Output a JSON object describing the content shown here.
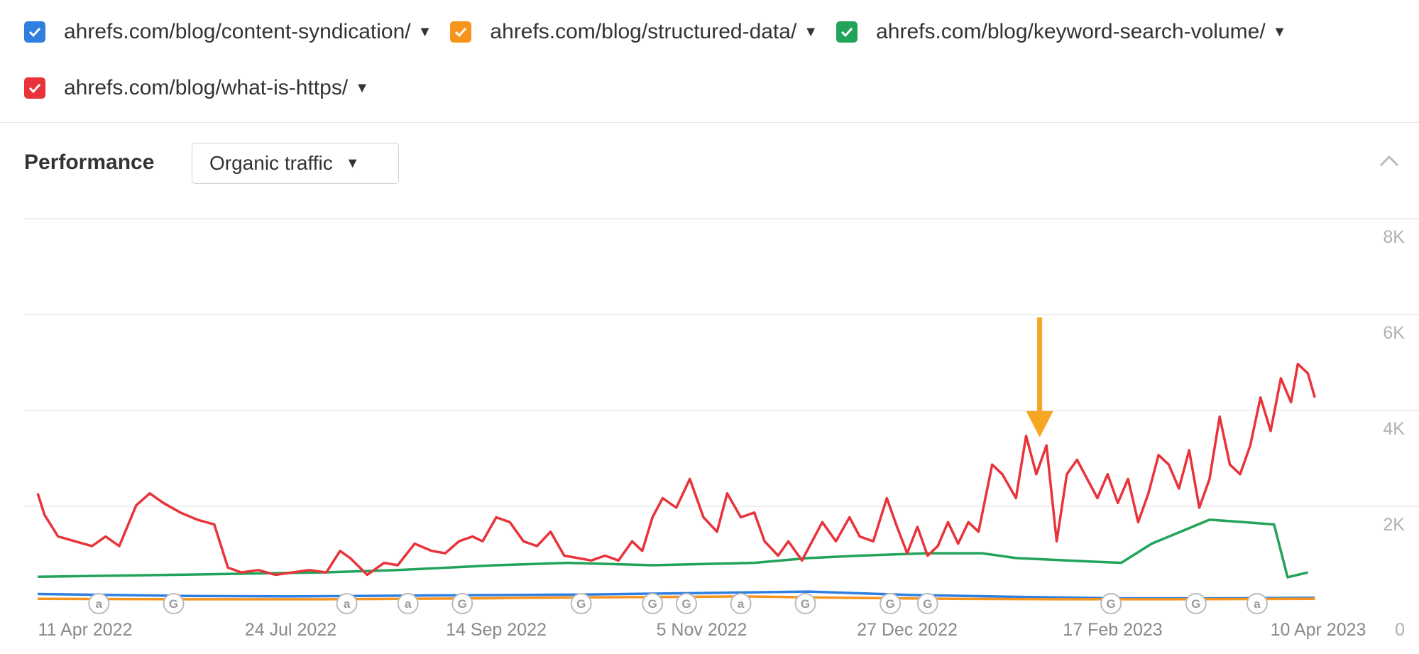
{
  "legend": [
    {
      "label": "ahrefs.com/blog/content-syndication/",
      "color": "#2f7fe0"
    },
    {
      "label": "ahrefs.com/blog/structured-data/",
      "color": "#f7941d"
    },
    {
      "label": "ahrefs.com/blog/keyword-search-volume/",
      "color": "#22a35a"
    },
    {
      "label": "ahrefs.com/blog/what-is-https/",
      "color": "#e8333a"
    }
  ],
  "icons": {
    "checkbox": "checkmark-icon",
    "caret": "caret-down-icon",
    "collapse": "chevron-up-icon",
    "annotation_arrow": "arrow-down-icon"
  },
  "performance": {
    "title": "Performance",
    "metric": "Organic traffic"
  },
  "chart_data": {
    "type": "line",
    "x_range": [
      "2022-04-03",
      "2023-04-19"
    ],
    "y_range": [
      0,
      8000
    ],
    "y_ticks": [
      "8K",
      "6K",
      "4K",
      "2K",
      "0"
    ],
    "x_ticks": [
      "11 Apr 2022",
      "24 Jul 2022",
      "14 Sep 2022",
      "5 Nov 2022",
      "27 Dec 2022",
      "17 Feb 2023",
      "10 Apr 2023"
    ],
    "grid": true,
    "annotation": {
      "type": "arrow",
      "date": "2023-01-27",
      "color": "#f5a623"
    },
    "event_markers": [
      {
        "label": "a",
        "date": "2022-04-25"
      },
      {
        "label": "G",
        "date": "2022-05-17"
      },
      {
        "label": "a",
        "date": "2022-07-07"
      },
      {
        "label": "a",
        "date": "2022-07-25"
      },
      {
        "label": "G",
        "date": "2022-08-10"
      },
      {
        "label": "G",
        "date": "2022-09-14"
      },
      {
        "label": "G",
        "date": "2022-10-05"
      },
      {
        "label": "G",
        "date": "2022-10-15"
      },
      {
        "label": "a",
        "date": "2022-10-31"
      },
      {
        "label": "G",
        "date": "2022-11-19"
      },
      {
        "label": "G",
        "date": "2022-12-14"
      },
      {
        "label": "G",
        "date": "2022-12-25"
      },
      {
        "label": "G",
        "date": "2023-02-17"
      },
      {
        "label": "G",
        "date": "2023-03-14"
      },
      {
        "label": "a",
        "date": "2023-04-01"
      }
    ],
    "series": [
      {
        "name": "ahrefs.com/blog/what-is-https/",
        "color": "#e8333a",
        "points": [
          [
            "2022-04-07",
            2300
          ],
          [
            "2022-04-09",
            1850
          ],
          [
            "2022-04-13",
            1400
          ],
          [
            "2022-04-18",
            1300
          ],
          [
            "2022-04-23",
            1200
          ],
          [
            "2022-04-27",
            1400
          ],
          [
            "2022-05-01",
            1200
          ],
          [
            "2022-05-06",
            2050
          ],
          [
            "2022-05-10",
            2300
          ],
          [
            "2022-05-14",
            2100
          ],
          [
            "2022-05-19",
            1900
          ],
          [
            "2022-05-24",
            1750
          ],
          [
            "2022-05-29",
            1650
          ],
          [
            "2022-06-02",
            750
          ],
          [
            "2022-06-06",
            650
          ],
          [
            "2022-06-11",
            700
          ],
          [
            "2022-06-16",
            600
          ],
          [
            "2022-06-21",
            650
          ],
          [
            "2022-06-26",
            700
          ],
          [
            "2022-07-01",
            650
          ],
          [
            "2022-07-05",
            1100
          ],
          [
            "2022-07-08",
            950
          ],
          [
            "2022-07-13",
            600
          ],
          [
            "2022-07-18",
            850
          ],
          [
            "2022-07-22",
            800
          ],
          [
            "2022-07-27",
            1250
          ],
          [
            "2022-08-01",
            1100
          ],
          [
            "2022-08-05",
            1050
          ],
          [
            "2022-08-09",
            1300
          ],
          [
            "2022-08-13",
            1400
          ],
          [
            "2022-08-16",
            1300
          ],
          [
            "2022-08-20",
            1800
          ],
          [
            "2022-08-24",
            1700
          ],
          [
            "2022-08-28",
            1300
          ],
          [
            "2022-09-01",
            1200
          ],
          [
            "2022-09-05",
            1500
          ],
          [
            "2022-09-09",
            1000
          ],
          [
            "2022-09-13",
            950
          ],
          [
            "2022-09-17",
            900
          ],
          [
            "2022-09-21",
            1000
          ],
          [
            "2022-09-25",
            900
          ],
          [
            "2022-09-29",
            1300
          ],
          [
            "2022-10-02",
            1100
          ],
          [
            "2022-10-05",
            1800
          ],
          [
            "2022-10-08",
            2200
          ],
          [
            "2022-10-12",
            2000
          ],
          [
            "2022-10-16",
            2600
          ],
          [
            "2022-10-20",
            1800
          ],
          [
            "2022-10-24",
            1500
          ],
          [
            "2022-10-27",
            2300
          ],
          [
            "2022-10-31",
            1800
          ],
          [
            "2022-11-04",
            1900
          ],
          [
            "2022-11-07",
            1300
          ],
          [
            "2022-11-11",
            1000
          ],
          [
            "2022-11-14",
            1300
          ],
          [
            "2022-11-18",
            900
          ],
          [
            "2022-11-21",
            1300
          ],
          [
            "2022-11-24",
            1700
          ],
          [
            "2022-11-28",
            1300
          ],
          [
            "2022-12-02",
            1800
          ],
          [
            "2022-12-05",
            1400
          ],
          [
            "2022-12-09",
            1300
          ],
          [
            "2022-12-13",
            2200
          ],
          [
            "2022-12-16",
            1600
          ],
          [
            "2022-12-19",
            1050
          ],
          [
            "2022-12-22",
            1600
          ],
          [
            "2022-12-25",
            1000
          ],
          [
            "2022-12-28",
            1200
          ],
          [
            "2022-12-31",
            1700
          ],
          [
            "2023-01-03",
            1250
          ],
          [
            "2023-01-06",
            1700
          ],
          [
            "2023-01-09",
            1500
          ],
          [
            "2023-01-13",
            2900
          ],
          [
            "2023-01-16",
            2700
          ],
          [
            "2023-01-20",
            2200
          ],
          [
            "2023-01-23",
            3500
          ],
          [
            "2023-01-26",
            2700
          ],
          [
            "2023-01-29",
            3300
          ],
          [
            "2023-02-01",
            1300
          ],
          [
            "2023-02-04",
            2700
          ],
          [
            "2023-02-07",
            3000
          ],
          [
            "2023-02-10",
            2600
          ],
          [
            "2023-02-13",
            2200
          ],
          [
            "2023-02-16",
            2700
          ],
          [
            "2023-02-19",
            2100
          ],
          [
            "2023-02-22",
            2600
          ],
          [
            "2023-02-25",
            1700
          ],
          [
            "2023-02-28",
            2300
          ],
          [
            "2023-03-03",
            3100
          ],
          [
            "2023-03-06",
            2900
          ],
          [
            "2023-03-09",
            2400
          ],
          [
            "2023-03-12",
            3200
          ],
          [
            "2023-03-15",
            2000
          ],
          [
            "2023-03-18",
            2600
          ],
          [
            "2023-03-21",
            3900
          ],
          [
            "2023-03-24",
            2900
          ],
          [
            "2023-03-27",
            2700
          ],
          [
            "2023-03-30",
            3300
          ],
          [
            "2023-04-02",
            4300
          ],
          [
            "2023-04-05",
            3600
          ],
          [
            "2023-04-08",
            4700
          ],
          [
            "2023-04-11",
            4200
          ],
          [
            "2023-04-13",
            5000
          ],
          [
            "2023-04-16",
            4800
          ],
          [
            "2023-04-18",
            4300
          ]
        ]
      },
      {
        "name": "ahrefs.com/blog/keyword-search-volume/",
        "color": "#22a35a",
        "points": [
          [
            "2022-04-07",
            560
          ],
          [
            "2022-05-17",
            600
          ],
          [
            "2022-06-30",
            650
          ],
          [
            "2022-07-22",
            700
          ],
          [
            "2022-08-20",
            800
          ],
          [
            "2022-09-10",
            850
          ],
          [
            "2022-10-05",
            800
          ],
          [
            "2022-11-04",
            850
          ],
          [
            "2022-11-20",
            950
          ],
          [
            "2022-12-05",
            1000
          ],
          [
            "2022-12-25",
            1050
          ],
          [
            "2023-01-10",
            1050
          ],
          [
            "2023-01-20",
            950
          ],
          [
            "2023-02-04",
            900
          ],
          [
            "2023-02-20",
            850
          ],
          [
            "2023-03-01",
            1250
          ],
          [
            "2023-03-18",
            1750
          ],
          [
            "2023-03-28",
            1700
          ],
          [
            "2023-04-06",
            1650
          ],
          [
            "2023-04-10",
            550
          ],
          [
            "2023-04-13",
            600
          ],
          [
            "2023-04-16",
            650
          ]
        ]
      },
      {
        "name": "ahrefs.com/blog/content-syndication/",
        "color": "#2f7fe0",
        "points": [
          [
            "2022-04-07",
            200
          ],
          [
            "2022-05-20",
            160
          ],
          [
            "2022-06-20",
            150
          ],
          [
            "2022-08-01",
            170
          ],
          [
            "2022-09-15",
            190
          ],
          [
            "2022-10-20",
            220
          ],
          [
            "2022-11-20",
            250
          ],
          [
            "2022-12-20",
            180
          ],
          [
            "2023-01-20",
            140
          ],
          [
            "2023-02-20",
            110
          ],
          [
            "2023-03-20",
            110
          ],
          [
            "2023-04-18",
            120
          ]
        ]
      },
      {
        "name": "ahrefs.com/blog/structured-data/",
        "color": "#f7941d",
        "points": [
          [
            "2022-04-07",
            100
          ],
          [
            "2022-05-20",
            90
          ],
          [
            "2022-07-01",
            90
          ],
          [
            "2022-08-15",
            110
          ],
          [
            "2022-09-15",
            130
          ],
          [
            "2022-11-01",
            150
          ],
          [
            "2022-12-01",
            120
          ],
          [
            "2023-01-01",
            100
          ],
          [
            "2023-02-01",
            90
          ],
          [
            "2023-03-01",
            90
          ],
          [
            "2023-04-18",
            100
          ]
        ]
      }
    ]
  }
}
